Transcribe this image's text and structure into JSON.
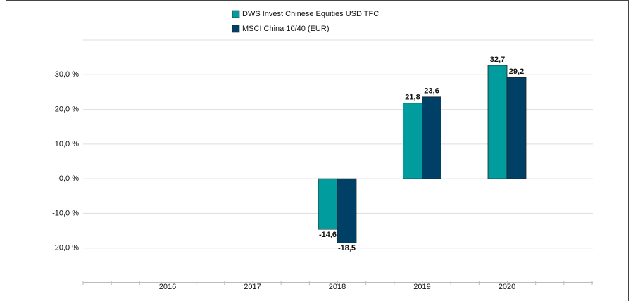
{
  "chart_data": {
    "type": "bar",
    "categories": [
      "2016",
      "2017",
      "2018",
      "2019",
      "2020"
    ],
    "series": [
      {
        "name": "DWS Invest Chinese Equities  USD TFC",
        "color": "#009c9e",
        "values": [
          null,
          null,
          -14.6,
          21.8,
          32.7
        ],
        "value_labels": [
          null,
          null,
          "-14,6",
          "21,8",
          "32,7"
        ]
      },
      {
        "name": "MSCI China 10/40 (EUR)",
        "color": "#003f66",
        "values": [
          null,
          null,
          -18.5,
          23.6,
          29.2
        ],
        "value_labels": [
          null,
          null,
          "-18,5",
          "23,6",
          "29,2"
        ]
      }
    ],
    "ylim": [
      -30,
      40
    ],
    "yticks": [
      {
        "value": -20,
        "label": "-20,0 %"
      },
      {
        "value": -10,
        "label": "-10,0 %"
      },
      {
        "value": 0,
        "label": "0,0 %"
      },
      {
        "value": 10,
        "label": "10,0 %"
      },
      {
        "value": 20,
        "label": "20,0 %"
      },
      {
        "value": 30,
        "label": "30,0 %"
      }
    ],
    "grid": true
  }
}
